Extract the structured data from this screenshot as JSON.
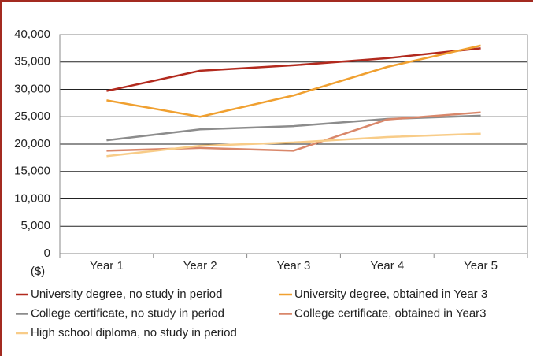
{
  "chart_data": {
    "type": "line",
    "y_label": "($)",
    "categories": [
      "Year 1",
      "Year 2",
      "Year 3",
      "Year 4",
      "Year 5"
    ],
    "series": [
      {
        "name": "University degree, no study in period",
        "color": "#b22a1e",
        "values": [
          29700,
          33400,
          34400,
          35700,
          37500
        ]
      },
      {
        "name": "University degree, obtained in Year 3",
        "color": "#f0a030",
        "values": [
          28000,
          25000,
          28900,
          34100,
          38000
        ]
      },
      {
        "name": "College certificate, no study in period",
        "color": "#8c8c8c",
        "values": [
          20700,
          22700,
          23300,
          24600,
          25200
        ]
      },
      {
        "name": "College certificate, obtained in Year3",
        "color": "#d9876a",
        "values": [
          18800,
          19300,
          18800,
          24500,
          25800
        ]
      },
      {
        "name": "High school diploma, no study in period",
        "color": "#f8cc88",
        "values": [
          17800,
          19700,
          20300,
          21300,
          21900
        ]
      }
    ],
    "ylim": [
      0,
      40000
    ],
    "yticks": [
      0,
      {
        "value": 5000,
        "label": "5,000"
      },
      {
        "value": 10000,
        "label": "10,000"
      },
      {
        "value": 15000,
        "label": "15,000"
      },
      {
        "value": 20000,
        "label": "20,000"
      },
      {
        "value": 25000,
        "label": "25,000"
      },
      {
        "value": 30000,
        "label": "30,000"
      },
      {
        "value": 35000,
        "label": "35,000"
      },
      {
        "value": 40000,
        "label": "40,000"
      }
    ],
    "grid": true
  }
}
